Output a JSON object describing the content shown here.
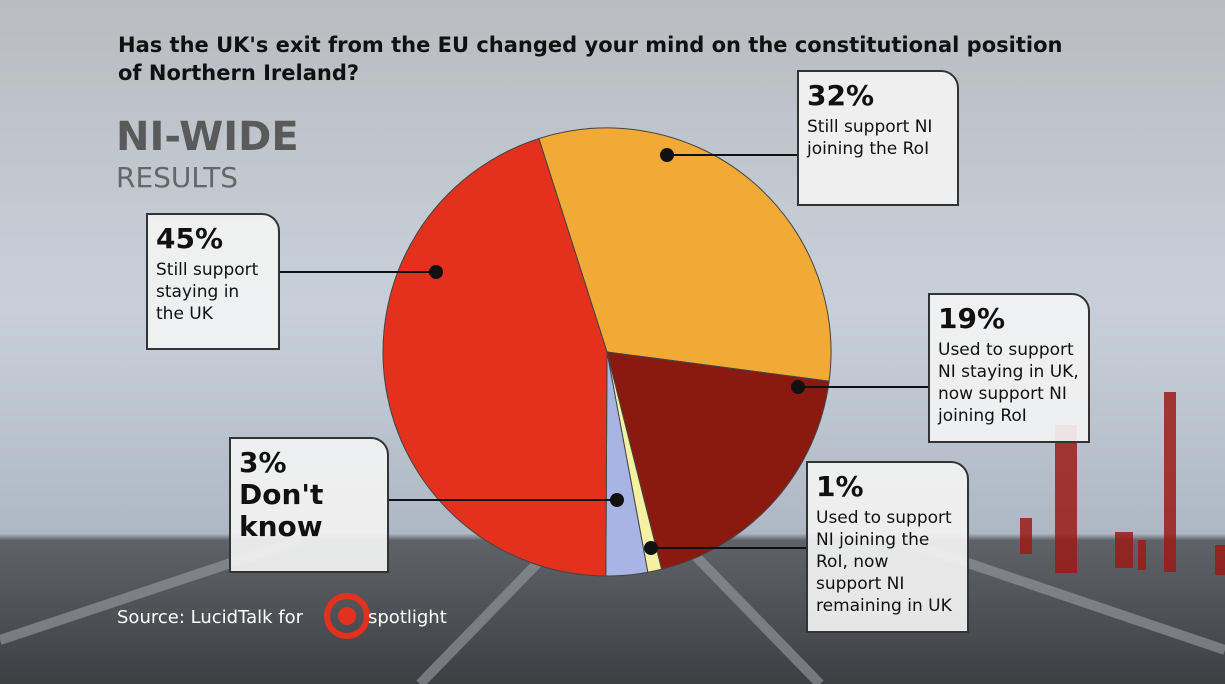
{
  "chart_data": {
    "type": "pie",
    "title": "Has the UK's exit from the EU changed your mind on the constitutional position of Northern Ireland?",
    "heading": "NI-WIDE",
    "subheading": "RESULTS",
    "source": "Source: LucidTalk for",
    "logo": "spotlight",
    "categories": [
      "Still support NI joining the RoI",
      "Used to support NI staying in UK, now support NI joining RoI",
      "Used to support NI joining the RoI, now support NI remaining in UK",
      "Don't know",
      "Still support staying in the UK"
    ],
    "values": [
      32,
      19,
      1,
      3,
      45
    ],
    "value_labels": [
      "32%",
      "19%",
      "1%",
      "3%",
      "45%"
    ],
    "colors": [
      "#f0aa35",
      "#8a1a0f",
      "#f5f1a2",
      "#a8b5e4",
      "#e3311e"
    ]
  }
}
